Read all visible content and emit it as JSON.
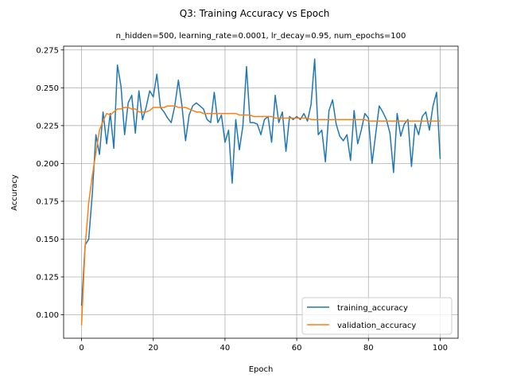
{
  "chart_data": {
    "type": "line",
    "title": "Q3: Training Accuracy vs Epoch",
    "subtitle": "n_hidden=500, learning_rate=0.0001, lr_decay=0.95, num_epochs=100",
    "xlabel": "Epoch",
    "ylabel": "Accuracy",
    "xlim": [
      -5,
      105
    ],
    "ylim": [
      0.0845,
      0.2775
    ],
    "xticks": [
      0,
      20,
      40,
      60,
      80,
      100
    ],
    "xtick_labels": [
      "0",
      "20",
      "40",
      "60",
      "80",
      "100"
    ],
    "yticks": [
      0.1,
      0.125,
      0.15,
      0.175,
      0.2,
      0.225,
      0.25,
      0.275
    ],
    "ytick_labels": [
      "0.100",
      "0.125",
      "0.150",
      "0.175",
      "0.200",
      "0.225",
      "0.250",
      "0.275"
    ],
    "grid": true,
    "legend_position": "lower-right",
    "x": [
      0,
      1,
      2,
      3,
      4,
      5,
      6,
      7,
      8,
      9,
      10,
      11,
      12,
      13,
      14,
      15,
      16,
      17,
      18,
      19,
      20,
      21,
      22,
      23,
      24,
      25,
      26,
      27,
      28,
      29,
      30,
      31,
      32,
      33,
      34,
      35,
      36,
      37,
      38,
      39,
      40,
      41,
      42,
      43,
      44,
      45,
      46,
      47,
      48,
      49,
      50,
      51,
      52,
      53,
      54,
      55,
      56,
      57,
      58,
      59,
      60,
      61,
      62,
      63,
      64,
      65,
      66,
      67,
      68,
      69,
      70,
      71,
      72,
      73,
      74,
      75,
      76,
      77,
      78,
      79,
      80,
      81,
      82,
      83,
      84,
      85,
      86,
      87,
      88,
      89,
      90,
      91,
      92,
      93,
      94,
      95,
      96,
      97,
      98,
      99,
      100
    ],
    "series": [
      {
        "name": "training_accuracy",
        "color": "#1f77b4",
        "values": [
          0.106,
          0.146,
          0.15,
          0.18,
          0.219,
          0.206,
          0.234,
          0.213,
          0.233,
          0.21,
          0.265,
          0.251,
          0.219,
          0.24,
          0.245,
          0.22,
          0.248,
          0.229,
          0.237,
          0.248,
          0.244,
          0.259,
          0.237,
          0.234,
          0.23,
          0.227,
          0.238,
          0.255,
          0.238,
          0.215,
          0.232,
          0.238,
          0.24,
          0.238,
          0.236,
          0.229,
          0.227,
          0.247,
          0.227,
          0.232,
          0.214,
          0.222,
          0.187,
          0.229,
          0.209,
          0.225,
          0.264,
          0.227,
          0.227,
          0.226,
          0.219,
          0.229,
          0.231,
          0.214,
          0.245,
          0.227,
          0.234,
          0.208,
          0.231,
          0.229,
          0.231,
          0.229,
          0.233,
          0.228,
          0.239,
          0.269,
          0.219,
          0.222,
          0.201,
          0.235,
          0.242,
          0.226,
          0.218,
          0.215,
          0.219,
          0.202,
          0.235,
          0.213,
          0.222,
          0.233,
          0.23,
          0.2,
          0.219,
          0.238,
          0.234,
          0.229,
          0.22,
          0.194,
          0.233,
          0.218,
          0.226,
          0.229,
          0.198,
          0.226,
          0.219,
          0.231,
          0.234,
          0.222,
          0.238,
          0.247,
          0.203
        ]
      },
      {
        "name": "validation_accuracy",
        "color": "#ff7f0e",
        "values": [
          0.093,
          0.145,
          0.174,
          0.192,
          0.207,
          0.222,
          0.228,
          0.233,
          0.232,
          0.234,
          0.236,
          0.236,
          0.237,
          0.237,
          0.236,
          0.236,
          0.234,
          0.234,
          0.234,
          0.235,
          0.237,
          0.237,
          0.237,
          0.237,
          0.238,
          0.238,
          0.238,
          0.237,
          0.237,
          0.237,
          0.236,
          0.235,
          0.234,
          0.234,
          0.233,
          0.233,
          0.233,
          0.233,
          0.233,
          0.233,
          0.233,
          0.233,
          0.233,
          0.233,
          0.232,
          0.232,
          0.232,
          0.232,
          0.231,
          0.231,
          0.231,
          0.231,
          0.231,
          0.231,
          0.23,
          0.23,
          0.23,
          0.23,
          0.23,
          0.23,
          0.23,
          0.23,
          0.23,
          0.23,
          0.229,
          0.229,
          0.229,
          0.229,
          0.229,
          0.229,
          0.229,
          0.229,
          0.229,
          0.229,
          0.229,
          0.229,
          0.229,
          0.229,
          0.229,
          0.229,
          0.228,
          0.228,
          0.228,
          0.228,
          0.228,
          0.228,
          0.228,
          0.228,
          0.228,
          0.228,
          0.228,
          0.228,
          0.228,
          0.228,
          0.228,
          0.228,
          0.228,
          0.228,
          0.228,
          0.228,
          0.228
        ]
      }
    ]
  }
}
